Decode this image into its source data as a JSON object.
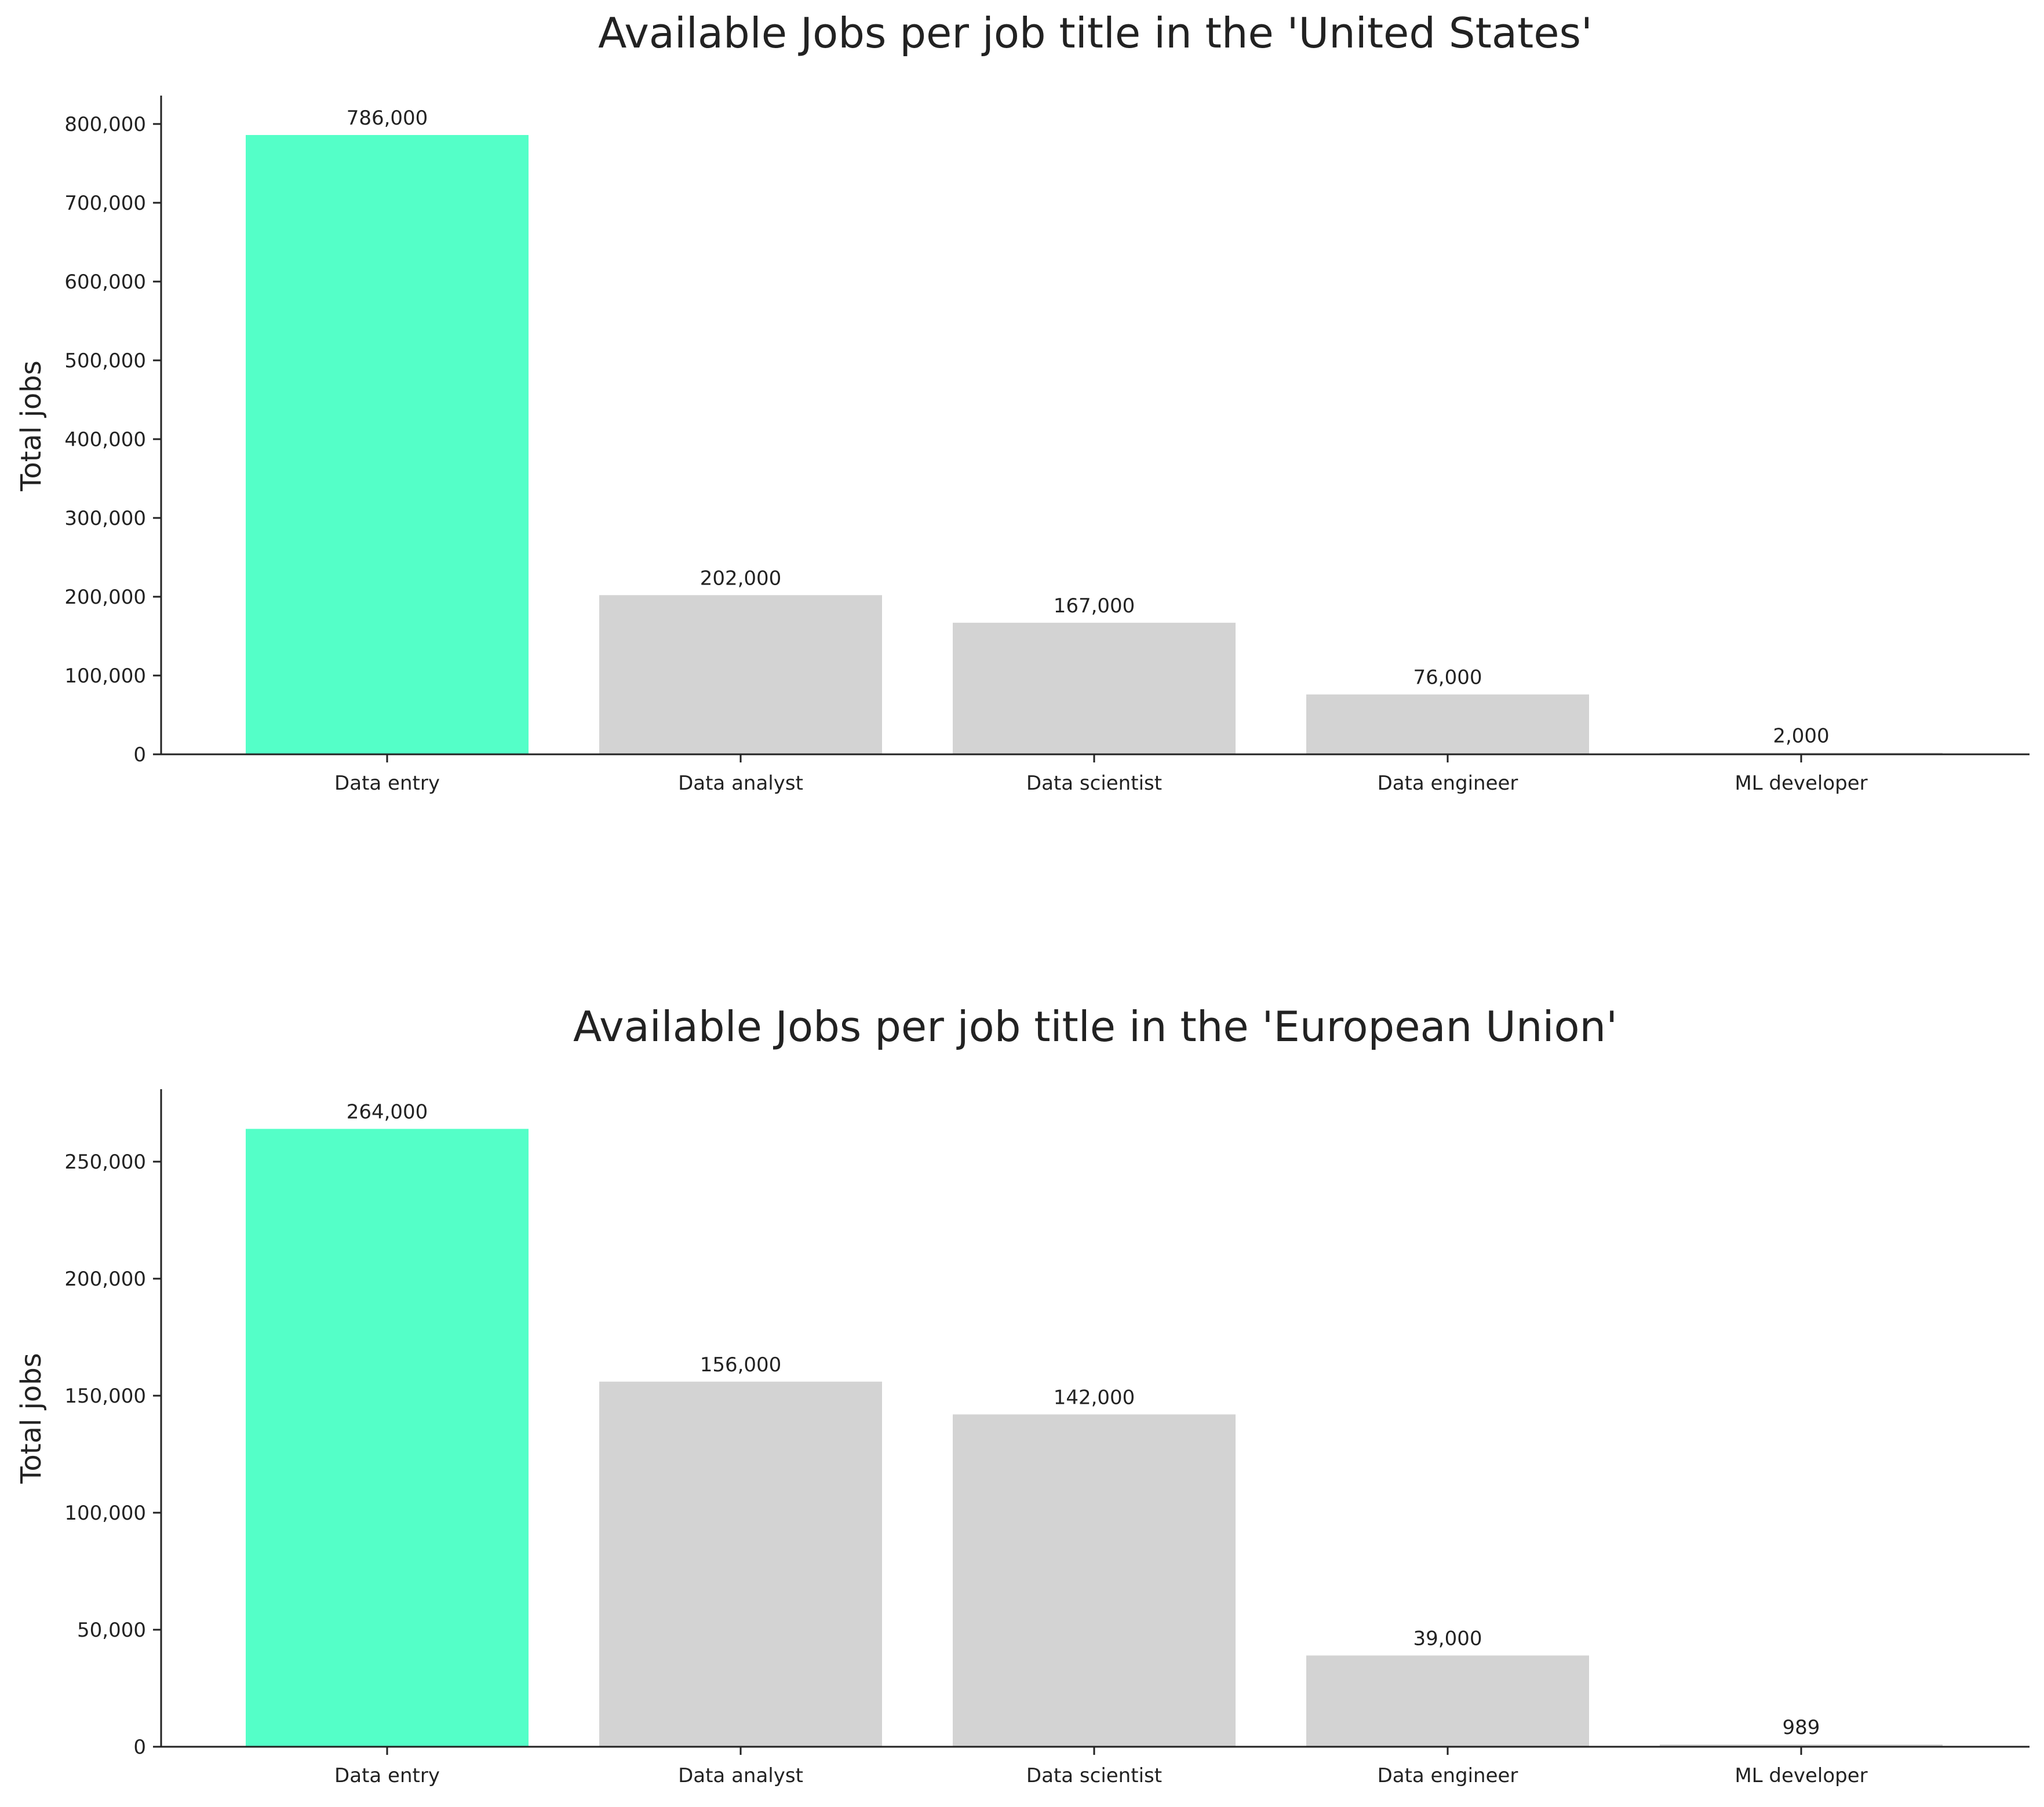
{
  "chart_data": [
    {
      "type": "bar",
      "title": "Available Jobs per job title in the 'United States'",
      "xlabel": "",
      "ylabel": "Total jobs",
      "categories": [
        "Data entry",
        "Data analyst",
        "Data scientist",
        "Data engineer",
        "ML developer"
      ],
      "values": [
        786000,
        202000,
        167000,
        76000,
        2000
      ],
      "data_labels": [
        "786,000",
        "202,000",
        "167,000",
        "76,000",
        "2,000"
      ],
      "ylim": [
        0,
        825000
      ],
      "yticks": [
        0,
        100000,
        200000,
        300000,
        400000,
        500000,
        600000,
        700000,
        800000
      ],
      "ytick_labels": [
        "0",
        "100,000",
        "200,000",
        "300,000",
        "400,000",
        "500,000",
        "600,000",
        "700,000",
        "800,000"
      ],
      "colors": [
        "#54ffc8",
        "#d3d3d3",
        "#d3d3d3",
        "#d3d3d3",
        "#d3d3d3"
      ],
      "grid": false,
      "legend": "none"
    },
    {
      "type": "bar",
      "title": "Available Jobs per job title in the 'European Union'",
      "xlabel": "",
      "ylabel": "Total jobs",
      "categories": [
        "Data entry",
        "Data analyst",
        "Data scientist",
        "Data engineer",
        "ML developer"
      ],
      "values": [
        264000,
        156000,
        142000,
        39000,
        989
      ],
      "data_labels": [
        "264,000",
        "156,000",
        "142,000",
        "39,000",
        "989"
      ],
      "ylim": [
        0,
        277000
      ],
      "yticks": [
        0,
        50000,
        100000,
        150000,
        200000,
        250000
      ],
      "ytick_labels": [
        "0",
        "50,000",
        "100,000",
        "150,000",
        "200,000",
        "250,000"
      ],
      "colors": [
        "#54ffc8",
        "#d3d3d3",
        "#d3d3d3",
        "#d3d3d3",
        "#d3d3d3"
      ],
      "grid": false,
      "legend": "none"
    }
  ]
}
